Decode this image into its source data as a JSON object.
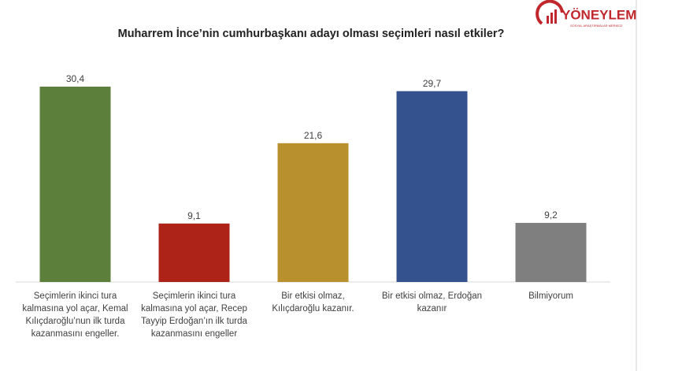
{
  "chart_data": {
    "type": "bar",
    "title": "Muharrem İnce’nin cumhurbaşkanı adayı olması seçimleri nasıl etkiler?",
    "categories": [
      "Seçimlerin ikinci tura kalmasına yol açar, Kemal Kılıçdaroğlu’nun ilk turda kazanmasını engeller.",
      "Seçimlerin ikinci tura kalmasına yol açar, Recep Tayyip Erdoğan’ın ilk turda kazanmasını engeller",
      "Bir etkisi olmaz, Kılıçdaroğlu kazanır.",
      "Bir etkisi olmaz, Erdoğan kazanır",
      "Bilmiyorum"
    ],
    "values": [
      30.4,
      9.1,
      21.6,
      29.7,
      9.2
    ],
    "value_labels": [
      "30,4",
      "9,1",
      "21,6",
      "29,7",
      "9,2"
    ],
    "colors": [
      "#5c7f3c",
      "#ae2318",
      "#b8902e",
      "#34528e",
      "#7f7f7f"
    ]
  },
  "logo": {
    "name": "YÖNEYLEM",
    "subtitle": "SOSYAL ARAŞTIRMALAR MERKEZİ"
  }
}
